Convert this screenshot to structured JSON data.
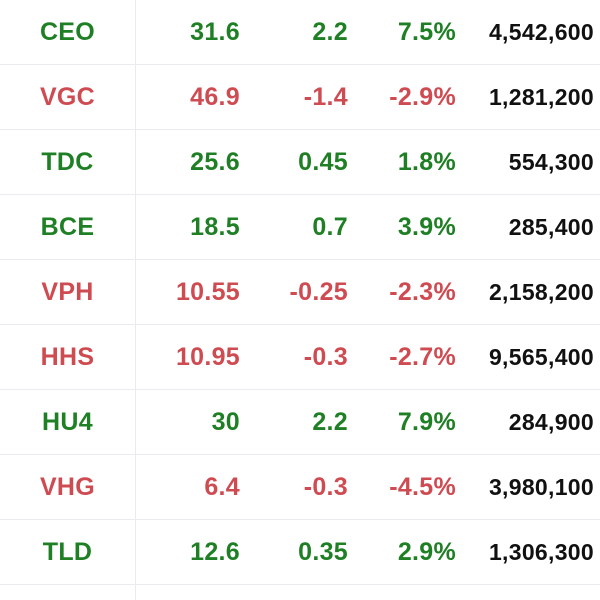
{
  "colors": {
    "up": "#1f7f24",
    "down": "#cf4b52",
    "volume": "#111111",
    "divider": "#e9ebee"
  },
  "stocks": [
    {
      "symbol": "CEO",
      "price": "31.6",
      "change": "2.2",
      "percent": "7.5%",
      "volume": "4,542,600",
      "trend": "up"
    },
    {
      "symbol": "VGC",
      "price": "46.9",
      "change": "-1.4",
      "percent": "-2.9%",
      "volume": "1,281,200",
      "trend": "down"
    },
    {
      "symbol": "TDC",
      "price": "25.6",
      "change": "0.45",
      "percent": "1.8%",
      "volume": "554,300",
      "trend": "up"
    },
    {
      "symbol": "BCE",
      "price": "18.5",
      "change": "0.7",
      "percent": "3.9%",
      "volume": "285,400",
      "trend": "up"
    },
    {
      "symbol": "VPH",
      "price": "10.55",
      "change": "-0.25",
      "percent": "-2.3%",
      "volume": "2,158,200",
      "trend": "down"
    },
    {
      "symbol": "HHS",
      "price": "10.95",
      "change": "-0.3",
      "percent": "-2.7%",
      "volume": "9,565,400",
      "trend": "down"
    },
    {
      "symbol": "HU4",
      "price": "30",
      "change": "2.2",
      "percent": "7.9%",
      "volume": "284,900",
      "trend": "up"
    },
    {
      "symbol": "VHG",
      "price": "6.4",
      "change": "-0.3",
      "percent": "-4.5%",
      "volume": "3,980,100",
      "trend": "down"
    },
    {
      "symbol": "TLD",
      "price": "12.6",
      "change": "0.35",
      "percent": "2.9%",
      "volume": "1,306,300",
      "trend": "up"
    }
  ]
}
